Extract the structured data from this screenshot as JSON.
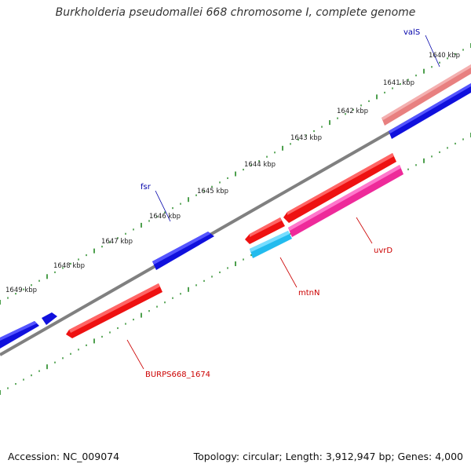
{
  "title": "Burkholderia pseudomallei 668 chromosome I, complete genome",
  "footer": {
    "accession": "Accession: NC_009074",
    "summary": "Topology: circular; Length: 3,912,947 bp; Genes: 4,000"
  },
  "kbp_labels": [
    "1640 kbp",
    "1641 kbp",
    "1642 kbp",
    "1643 kbp",
    "1644 kbp",
    "1645 kbp",
    "1646 kbp",
    "1647 kbp",
    "1648 kbp",
    "1649 kbp"
  ],
  "genes": [
    {
      "id": "valS",
      "label": "valS",
      "strand": "forward",
      "color": "#0000cc"
    },
    {
      "id": "fsr",
      "label": "fsr",
      "strand": "forward",
      "color": "#0000cc"
    },
    {
      "id": "uvrD",
      "label": "uvrD",
      "strand": "reverse",
      "color": "#cc0000"
    },
    {
      "id": "mtnN",
      "label": "mtnN",
      "strand": "reverse",
      "color": "#cc0000"
    },
    {
      "id": "BURPS668_1674",
      "label": "BURPS668_1674",
      "strand": "reverse",
      "color": "#cc0000"
    }
  ],
  "colors": {
    "forward": "#1010dd",
    "reverse": "#ee1111",
    "pink": "#ee2a9a",
    "cyan": "#22bbee",
    "salmon": "#ee8080",
    "backbone": "#808080",
    "tick": "#228822"
  }
}
